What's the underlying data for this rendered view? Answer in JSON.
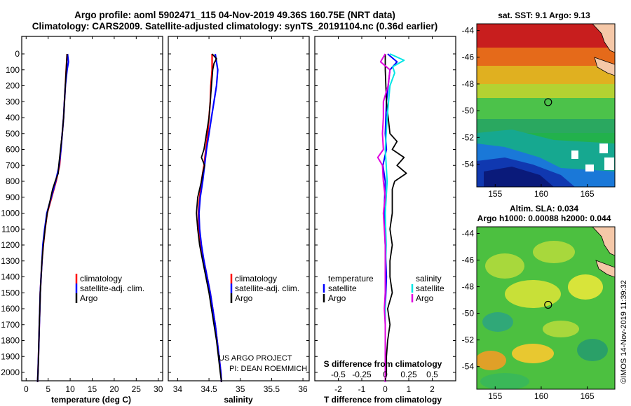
{
  "title_line1": "Argo profile: aoml 5902471_115 04-Nov-2019 49.36S 160.75E (NRT data)",
  "title_line2": "Climatology: CARS2009. Satellite-adjusted climatology: synTS_20191104.nc (0.36d earlier)",
  "credit": {
    "line1": "US ARGO PROJECT",
    "line2": "PI: DEAN ROEMMICH"
  },
  "watermark": "©IMOS 14-Nov-2019 11:39:32",
  "colors": {
    "climatology": "#ff0000",
    "satellite": "#0000ff",
    "argo": "#000000",
    "sal_satellite": "#00e5e5",
    "sal_argo": "#e000e0"
  },
  "chart_data": [
    {
      "type": "line",
      "id": "temperature",
      "xlabel": "temperature (deg C)",
      "xlim": [
        -1,
        31
      ],
      "ylim": [
        2080,
        0
      ],
      "x_ticks": [
        "0",
        "5",
        "10",
        "15",
        "20",
        "25",
        "30"
      ],
      "y_ticks": [
        "0",
        "100",
        "200",
        "300",
        "400",
        "500",
        "600",
        "700",
        "800",
        "900",
        "1000",
        "1100",
        "1200",
        "1300",
        "1400",
        "1500",
        "1600",
        "1700",
        "1800",
        "1900",
        "2000"
      ],
      "legend": [
        "climatology",
        "satellite-adj. clim.",
        "Argo"
      ],
      "series": [
        {
          "name": "climatology",
          "depth": [
            0,
            100,
            200,
            300,
            400,
            500,
            600,
            700,
            800,
            900,
            1000,
            1100,
            1200,
            1300,
            1400,
            1500,
            1600,
            1700,
            1800,
            1900,
            2000,
            2060
          ],
          "values": [
            9.3,
            9.1,
            8.9,
            8.7,
            8.5,
            8.2,
            7.9,
            7.6,
            6.8,
            5.8,
            4.8,
            4.3,
            3.9,
            3.6,
            3.4,
            3.2,
            3.1,
            3.0,
            2.9,
            2.8,
            2.7,
            2.6
          ]
        },
        {
          "name": "satellite-adj. clim.",
          "depth": [
            0,
            50,
            100,
            200,
            300,
            400,
            500,
            600,
            700,
            800,
            900,
            1000,
            1100,
            1200,
            1300,
            1400,
            1500,
            1600,
            1700,
            1800,
            1900,
            2000,
            2060
          ],
          "values": [
            9.4,
            9.6,
            9.3,
            8.9,
            8.7,
            8.5,
            8.2,
            7.9,
            7.5,
            6.7,
            5.7,
            4.7,
            4.2,
            3.8,
            3.6,
            3.4,
            3.2,
            3.1,
            3.0,
            2.9,
            2.8,
            2.7,
            2.6
          ]
        },
        {
          "name": "Argo",
          "depth": [
            0,
            100,
            200,
            300,
            400,
            500,
            600,
            700,
            750,
            800,
            850,
            900,
            1000,
            1100,
            1200,
            1300,
            1400,
            1500,
            1600,
            1700,
            1800,
            1900,
            2000,
            2060
          ],
          "values": [
            9.3,
            9.1,
            8.9,
            8.7,
            8.5,
            8.2,
            7.8,
            7.4,
            7.3,
            6.6,
            6.0,
            5.6,
            4.8,
            4.3,
            3.9,
            3.6,
            3.4,
            3.2,
            3.1,
            3.0,
            2.9,
            2.8,
            2.7,
            2.6
          ]
        }
      ]
    },
    {
      "type": "line",
      "id": "salinity",
      "xlabel": "salinity",
      "xlim": [
        33.85,
        36.1
      ],
      "ylim": [
        2080,
        0
      ],
      "x_ticks": [
        "34",
        "34.5",
        "35",
        "35.5",
        "36"
      ],
      "legend": [
        "climatology",
        "satellite-adj. clim.",
        "Argo"
      ],
      "series": [
        {
          "name": "climatology",
          "depth": [
            0,
            100,
            200,
            300,
            400,
            500,
            600,
            700,
            800,
            900,
            1000,
            1100,
            1200,
            1300,
            1400,
            1500,
            1600,
            1700,
            1800,
            1900,
            2000,
            2060
          ],
          "values": [
            34.55,
            34.55,
            34.53,
            34.52,
            34.5,
            34.48,
            34.45,
            34.42,
            34.38,
            34.35,
            34.33,
            34.34,
            34.37,
            34.42,
            34.47,
            34.52,
            34.56,
            34.6,
            34.63,
            34.66,
            34.69,
            34.7
          ]
        },
        {
          "name": "satellite-adj. clim.",
          "depth": [
            0,
            50,
            100,
            200,
            300,
            400,
            500,
            600,
            700,
            800,
            900,
            1000,
            1100,
            1200,
            1300,
            1400,
            1500,
            1600,
            1700,
            1800,
            1900,
            2000,
            2060
          ],
          "values": [
            34.6,
            34.62,
            34.64,
            34.62,
            34.58,
            34.54,
            34.5,
            34.46,
            34.43,
            34.4,
            34.36,
            34.34,
            34.35,
            34.38,
            34.42,
            34.47,
            34.52,
            34.56,
            34.6,
            34.63,
            34.66,
            34.69,
            34.7
          ]
        },
        {
          "name": "Argo",
          "depth": [
            0,
            30,
            60,
            100,
            200,
            300,
            400,
            500,
            600,
            650,
            700,
            750,
            800,
            900,
            1000,
            1100,
            1200,
            1300,
            1400,
            1500,
            1600,
            1700,
            1800,
            1900,
            2000,
            2060
          ],
          "values": [
            34.55,
            34.62,
            34.58,
            34.56,
            34.54,
            34.52,
            34.5,
            34.46,
            34.42,
            34.38,
            34.43,
            34.4,
            34.38,
            34.32,
            34.3,
            34.32,
            34.35,
            34.4,
            34.45,
            34.5,
            34.54,
            34.58,
            34.62,
            34.65,
            34.68,
            34.7
          ]
        }
      ]
    },
    {
      "type": "line",
      "id": "difference",
      "xlabel": "T difference from climatology",
      "xlabel_top": "S difference from climatology",
      "xlim": [
        -3,
        3
      ],
      "ylim": [
        2080,
        0
      ],
      "x_ticks": [
        "-2",
        "-1",
        "0",
        "1",
        "2"
      ],
      "x2_ticks": [
        "-0.5",
        "-0.25",
        "0",
        "0.25",
        "0.5"
      ],
      "legend_left_title": "temperature",
      "legend_left": [
        "satellite",
        "Argo"
      ],
      "legend_right_title": "salinity",
      "legend_right": [
        "satellite",
        "Argo"
      ],
      "series": [
        {
          "name": "T satellite",
          "depth": [
            0,
            50,
            100,
            300,
            500,
            600,
            700,
            800,
            1000,
            1200,
            1400,
            1600,
            1800,
            2000,
            2060
          ],
          "values": [
            0.1,
            0.5,
            0.2,
            0.05,
            0.0,
            0.05,
            -0.1,
            0.0,
            -0.05,
            0.0,
            0.05,
            0.0,
            0.0,
            0.0,
            0.0
          ]
        },
        {
          "name": "T Argo",
          "depth": [
            0,
            100,
            300,
            500,
            550,
            600,
            650,
            700,
            750,
            800,
            850,
            900,
            1000,
            1100,
            1200,
            1300,
            1400,
            1500,
            1600,
            1700,
            1800,
            1900,
            2000,
            2060
          ],
          "values": [
            0.0,
            0.0,
            0.05,
            0.2,
            0.5,
            0.3,
            0.8,
            0.5,
            0.9,
            0.4,
            0.3,
            0.3,
            0.3,
            0.2,
            0.3,
            0.2,
            0.2,
            0.3,
            0.1,
            0.2,
            0.1,
            0.05,
            0.05,
            0.0
          ]
        },
        {
          "name": "S satellite",
          "depth": [
            0,
            40,
            80,
            120,
            200,
            400,
            600,
            800,
            1000,
            1200,
            1400,
            1600,
            1800,
            2000,
            2060
          ],
          "values": [
            0.05,
            0.2,
            0.08,
            0.1,
            0.05,
            0.02,
            0.0,
            0.02,
            0.0,
            0.01,
            0.0,
            0.0,
            0.0,
            0.0,
            0.0
          ]
        },
        {
          "name": "S Argo",
          "depth": [
            0,
            50,
            100,
            200,
            300,
            400,
            500,
            600,
            650,
            700,
            800,
            900,
            1000,
            1100,
            1200,
            1300,
            1400,
            1500,
            1600,
            1700,
            1800,
            1900,
            2000,
            2060
          ],
          "values": [
            0.0,
            -0.05,
            0.05,
            0.03,
            -0.02,
            -0.02,
            -0.03,
            -0.02,
            -0.08,
            -0.03,
            -0.02,
            0.0,
            -0.02,
            -0.01,
            0.0,
            0.0,
            0.0,
            0.0,
            -0.01,
            0.0,
            0.0,
            0.0,
            0.0,
            0.0
          ]
        }
      ]
    },
    {
      "type": "heatmap",
      "id": "sst_map",
      "title": "sat. SST: 9.1  Argo: 9.13",
      "x_ticks": [
        "155",
        "160",
        "165"
      ],
      "y_ticks": [
        "-44",
        "-46",
        "-48",
        "-50",
        "-52",
        "-54"
      ],
      "profile_location": {
        "lon": 160.75,
        "lat": -49.36
      }
    },
    {
      "type": "heatmap",
      "id": "sla_map",
      "title_line1": "Altim. SLA: 0.034",
      "title_line2": "Argo h1000: 0.00088 h2000: 0.044",
      "x_ticks": [
        "155",
        "160",
        "165"
      ],
      "y_ticks": [
        "-44",
        "-46",
        "-48",
        "-50",
        "-52",
        "-54"
      ],
      "profile_location": {
        "lon": 160.75,
        "lat": -49.36
      }
    }
  ]
}
